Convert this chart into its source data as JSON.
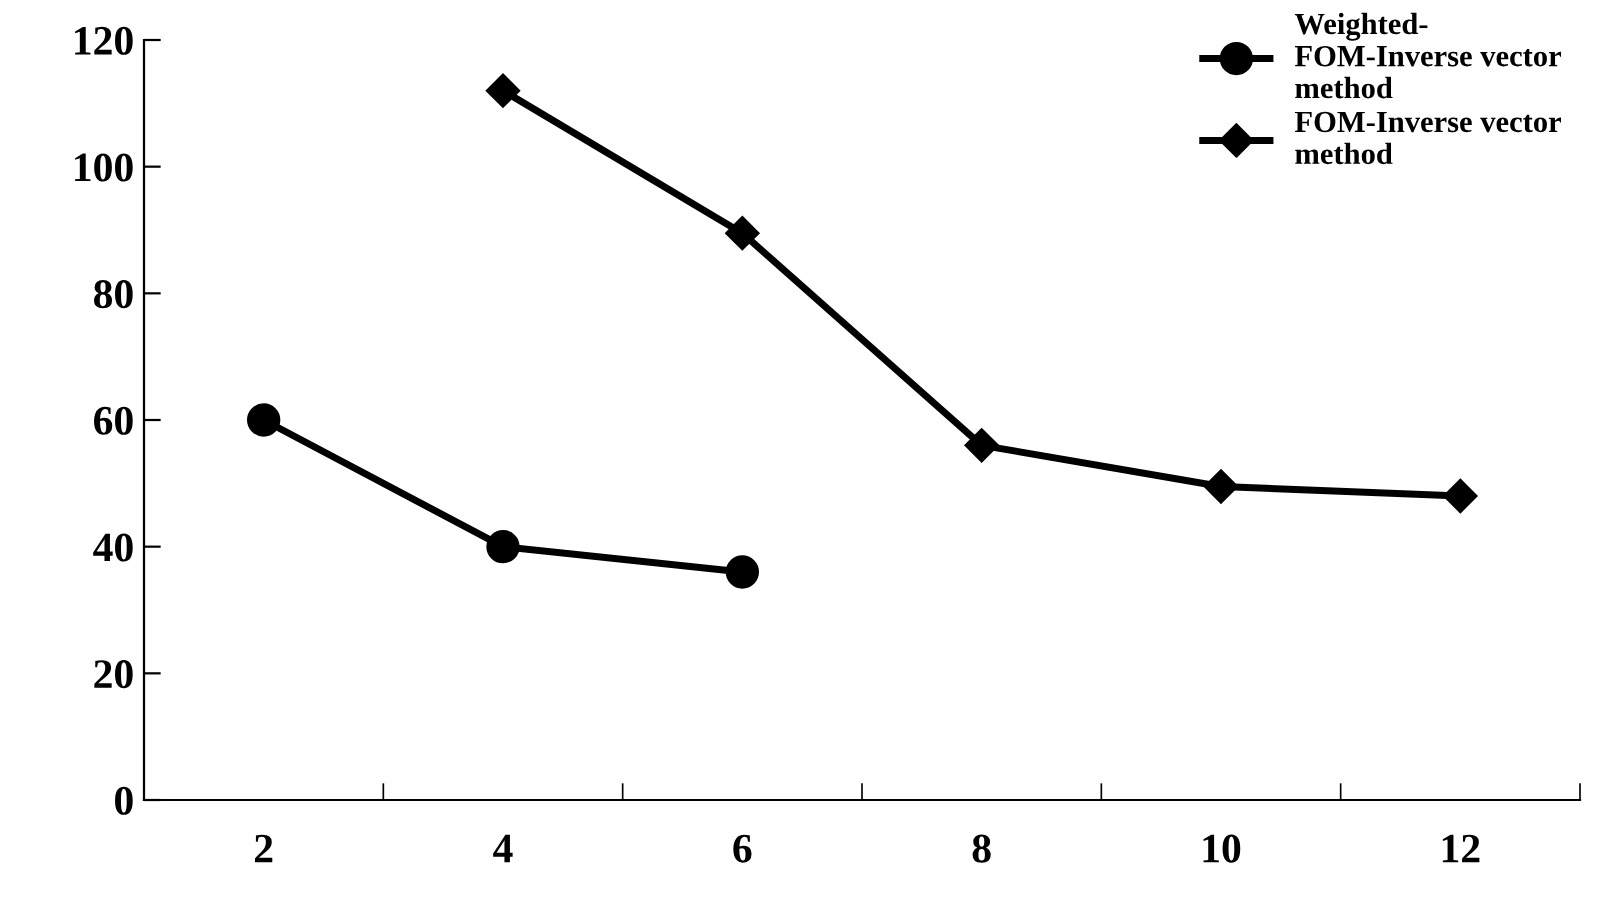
{
  "chart_data": {
    "type": "line",
    "categories": [
      "2",
      "4",
      "6",
      "8",
      "10",
      "12"
    ],
    "series": [
      {
        "name": "Weighted- FOM-Inverse vector method",
        "color": "#000000",
        "marker": "circle",
        "values": [
          60,
          40,
          36,
          null,
          null,
          null
        ]
      },
      {
        "name": "FOM-Inverse vector method",
        "color": "#000000",
        "marker": "diamond",
        "values": [
          null,
          112,
          89.5,
          56,
          49.5,
          48
        ]
      }
    ],
    "ylim": [
      0,
      120
    ],
    "yticks": [
      0,
      20,
      40,
      60,
      80,
      100,
      120
    ],
    "grid": false,
    "legend": "top right",
    "line_style": "solid"
  }
}
